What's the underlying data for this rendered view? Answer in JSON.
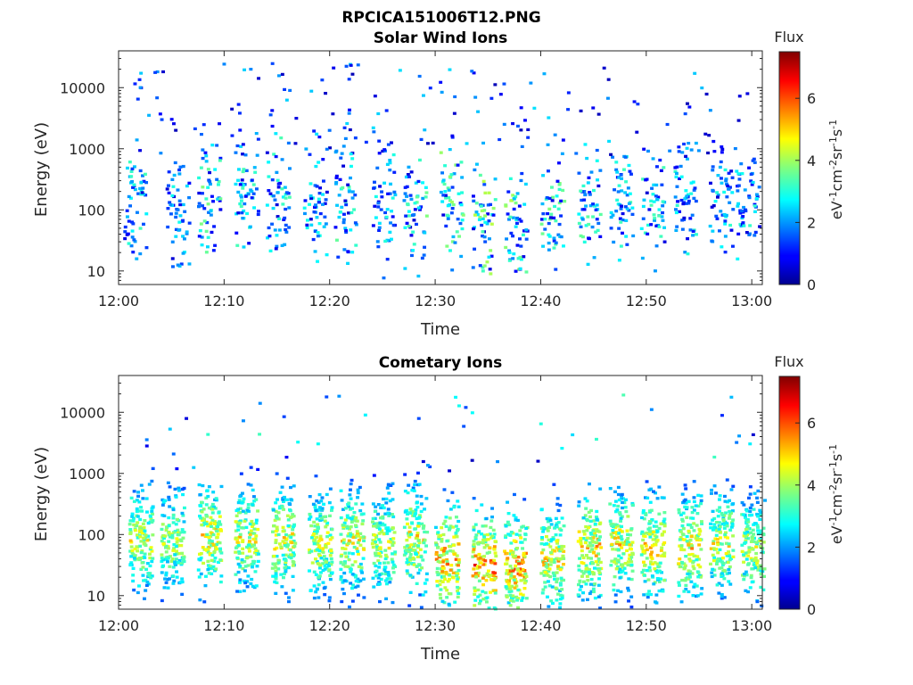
{
  "figure": {
    "title": "RPCICA151006T12.PNG"
  },
  "chart_data": [
    {
      "type": "heatmap",
      "title": "Solar Wind Ions",
      "xlabel": "Time",
      "ylabel": "Energy (eV)",
      "y_scale": "log",
      "ylim": [
        6,
        40000
      ],
      "xlim": [
        "12:00",
        "13:01"
      ],
      "x_ticks": [
        "12:00",
        "12:10",
        "12:20",
        "12:30",
        "12:40",
        "12:50",
        "13:00"
      ],
      "y_ticks": [
        "10",
        "100",
        "1000",
        "10000"
      ],
      "colorbar": {
        "label": "Flux",
        "unit": "eV-1cm-2sr-1s-1",
        "range": [
          0,
          7.5
        ],
        "ticks": [
          "0",
          "2",
          "4",
          "6"
        ],
        "colormap": "jet"
      },
      "bursts": [
        {
          "t_min": 1.5,
          "e_peak_ev": 150,
          "flux_peak": 2.2
        },
        {
          "t_min": 5.5,
          "e_peak_ev": 100,
          "flux_peak": 1.8
        },
        {
          "t_min": 8.5,
          "e_peak_ev": 150,
          "flux_peak": 2.6
        },
        {
          "t_min": 12.0,
          "e_peak_ev": 150,
          "flux_peak": 2.3
        },
        {
          "t_min": 15.0,
          "e_peak_ev": 150,
          "flux_peak": 2.2
        },
        {
          "t_min": 18.5,
          "e_peak_ev": 150,
          "flux_peak": 1.8
        },
        {
          "t_min": 21.5,
          "e_peak_ev": 120,
          "flux_peak": 2.4
        },
        {
          "t_min": 25.0,
          "e_peak_ev": 150,
          "flux_peak": 2.0
        },
        {
          "t_min": 28.0,
          "e_peak_ev": 120,
          "flux_peak": 2.6
        },
        {
          "t_min": 31.5,
          "e_peak_ev": 100,
          "flux_peak": 2.8
        },
        {
          "t_min": 34.5,
          "e_peak_ev": 60,
          "flux_peak": 3.0
        },
        {
          "t_min": 37.5,
          "e_peak_ev": 60,
          "flux_peak": 3.0
        },
        {
          "t_min": 41.0,
          "e_peak_ev": 80,
          "flux_peak": 2.6
        },
        {
          "t_min": 44.5,
          "e_peak_ev": 120,
          "flux_peak": 2.4
        },
        {
          "t_min": 47.5,
          "e_peak_ev": 150,
          "flux_peak": 2.2
        },
        {
          "t_min": 50.5,
          "e_peak_ev": 120,
          "flux_peak": 2.2
        },
        {
          "t_min": 53.5,
          "e_peak_ev": 150,
          "flux_peak": 2.0
        },
        {
          "t_min": 57.0,
          "e_peak_ev": 150,
          "flux_peak": 2.0
        },
        {
          "t_min": 59.5,
          "e_peak_ev": 120,
          "flux_peak": 2.0
        }
      ]
    },
    {
      "type": "heatmap",
      "title": "Cometary Ions",
      "xlabel": "Time",
      "ylabel": "Energy (eV)",
      "y_scale": "log",
      "ylim": [
        6,
        40000
      ],
      "xlim": [
        "12:00",
        "13:01"
      ],
      "x_ticks": [
        "12:00",
        "12:10",
        "12:20",
        "12:30",
        "12:40",
        "12:50",
        "13:00"
      ],
      "y_ticks": [
        "10",
        "100",
        "1000",
        "10000"
      ],
      "colorbar": {
        "label": "Flux",
        "unit": "eV-1cm-2sr-1s-1",
        "range": [
          0,
          7.5
        ],
        "ticks": [
          "0",
          "2",
          "4",
          "6"
        ],
        "colormap": "jet"
      },
      "bursts": [
        {
          "t_min": 2.0,
          "e_peak_ev": 80,
          "flux_peak": 4.6
        },
        {
          "t_min": 5.0,
          "e_peak_ev": 80,
          "flux_peak": 4.4
        },
        {
          "t_min": 8.5,
          "e_peak_ev": 90,
          "flux_peak": 5.0
        },
        {
          "t_min": 12.0,
          "e_peak_ev": 90,
          "flux_peak": 4.8
        },
        {
          "t_min": 15.5,
          "e_peak_ev": 80,
          "flux_peak": 4.8
        },
        {
          "t_min": 19.0,
          "e_peak_ev": 70,
          "flux_peak": 4.6
        },
        {
          "t_min": 22.0,
          "e_peak_ev": 80,
          "flux_peak": 4.8
        },
        {
          "t_min": 25.0,
          "e_peak_ev": 70,
          "flux_peak": 4.6
        },
        {
          "t_min": 28.0,
          "e_peak_ev": 80,
          "flux_peak": 5.0
        },
        {
          "t_min": 31.0,
          "e_peak_ev": 40,
          "flux_peak": 5.5
        },
        {
          "t_min": 34.5,
          "e_peak_ev": 30,
          "flux_peak": 6.0
        },
        {
          "t_min": 37.5,
          "e_peak_ev": 30,
          "flux_peak": 5.8
        },
        {
          "t_min": 41.0,
          "e_peak_ev": 40,
          "flux_peak": 5.0
        },
        {
          "t_min": 44.5,
          "e_peak_ev": 60,
          "flux_peak": 5.2
        },
        {
          "t_min": 47.5,
          "e_peak_ev": 70,
          "flux_peak": 5.0
        },
        {
          "t_min": 50.5,
          "e_peak_ev": 60,
          "flux_peak": 5.0
        },
        {
          "t_min": 54.0,
          "e_peak_ev": 60,
          "flux_peak": 5.0
        },
        {
          "t_min": 57.0,
          "e_peak_ev": 70,
          "flux_peak": 4.8
        },
        {
          "t_min": 60.0,
          "e_peak_ev": 60,
          "flux_peak": 4.6
        }
      ]
    }
  ]
}
